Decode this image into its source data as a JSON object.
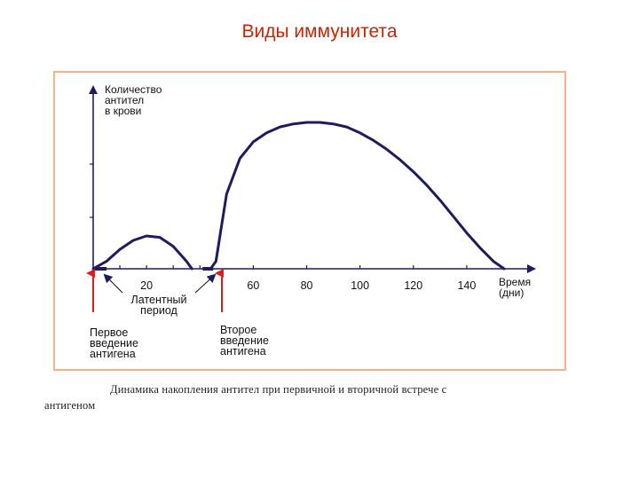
{
  "slide_title": "Виды иммунитета",
  "caption": {
    "line1": "Динамика накопления антител при первичной и вторичной встрече с",
    "line2": "антигеном"
  },
  "colors": {
    "title": "#cc2200",
    "curve": "#1e1b5e",
    "arrow": "#d81e1e",
    "frame": "#f0b48c"
  },
  "chart_data": {
    "type": "line",
    "title": "",
    "ylabel": [
      "Количество",
      "антител",
      "в крови"
    ],
    "xlabel": [
      "Время",
      "(дни)"
    ],
    "x_ticks": [
      "20",
      "60",
      "80",
      "100",
      "120",
      "140"
    ],
    "xlim": [
      0,
      160
    ],
    "ylim": [
      0,
      100
    ],
    "grid": false,
    "series": [
      {
        "x": [
          0,
          5,
          10,
          15,
          20,
          25,
          30,
          35,
          37
        ],
        "y": [
          0,
          5,
          13,
          19,
          22,
          21,
          15,
          5,
          0
        ]
      },
      {
        "x": [
          44,
          46,
          50,
          55,
          60,
          65,
          70,
          75,
          80,
          85,
          90,
          95,
          100,
          105,
          110,
          115,
          120,
          125,
          130,
          135,
          140,
          145,
          150,
          154
        ],
        "y": [
          0,
          5,
          50,
          74,
          85,
          91,
          95,
          97,
          98,
          98,
          97,
          95,
          91,
          86,
          80,
          73,
          65,
          56,
          46,
          35,
          24,
          14,
          5,
          0
        ]
      }
    ],
    "annotations": [
      {
        "text": [
          "Латентный",
          "период"
        ]
      },
      {
        "text": [
          "Первое",
          "введение",
          "антигена"
        ]
      },
      {
        "text": [
          "Второе",
          "введение",
          "антигена"
        ]
      }
    ]
  }
}
